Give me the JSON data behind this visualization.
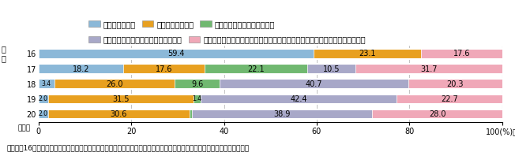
{
  "years": [
    "16",
    "17",
    "18",
    "19",
    "20"
  ],
  "segments_per_row": [
    [
      {
        "value": 59.4,
        "color": "#8BB8D8"
      },
      {
        "value": 23.1,
        "color": "#E8A020"
      },
      {
        "value": 17.6,
        "color": "#F0A8B8"
      }
    ],
    [
      {
        "value": 18.2,
        "color": "#8BB8D8"
      },
      {
        "value": 17.6,
        "color": "#E8A020"
      },
      {
        "value": 22.1,
        "color": "#70B870"
      },
      {
        "value": 10.5,
        "color": "#A8A8C8"
      },
      {
        "value": 31.7,
        "color": "#F0A8B8"
      }
    ],
    [
      {
        "value": 3.4,
        "color": "#8BB8D8"
      },
      {
        "value": 26.0,
        "color": "#E8A020"
      },
      {
        "value": 9.6,
        "color": "#70B870"
      },
      {
        "value": 40.7,
        "color": "#A8A8C8"
      },
      {
        "value": 20.3,
        "color": "#F0A8B8"
      }
    ],
    [
      {
        "value": 2.0,
        "color": "#8BB8D8"
      },
      {
        "value": 31.5,
        "color": "#E8A020"
      },
      {
        "value": 1.4,
        "color": "#70B870"
      },
      {
        "value": 42.4,
        "color": "#A8A8C8"
      },
      {
        "value": 22.7,
        "color": "#F0A8B8"
      }
    ],
    [
      {
        "value": 2.0,
        "color": "#8BB8D8"
      },
      {
        "value": 30.6,
        "color": "#E8A020"
      },
      {
        "value": 0.5,
        "color": "#70B870"
      },
      {
        "value": 38.9,
        "color": "#A8A8C8"
      },
      {
        "value": 28.0,
        "color": "#F0A8B8"
      }
    ]
  ],
  "legend_row1": [
    {
      "label": "交通事故示談金",
      "color": "#8BB8D8"
    },
    {
      "label": "サラ金等借金返済",
      "color": "#E8A020"
    },
    {
      "label": "公共交通機関での痴漢示談金",
      "color": "#70B870"
    }
  ],
  "legend_row2": [
    {
      "label": "会社でのトラブル・横領等の補てん金",
      "color": "#A8A8C8"
    },
    {
      "label": "その他（妊娠中絶手術費用、刑事事件に係る示談金・弁護費用・保釈金　等）",
      "color": "#F0A8B8"
    }
  ],
  "note": "注：平成16年中の「その他」には、「会社でのトラブル・横領等の補てん金」及び「公共交通機関での痴漢示談金」を含む。",
  "heiseilabel": "平\n成",
  "nenlabel": "（年）",
  "background_color": "#ffffff",
  "bar_height": 0.65,
  "fontsize": 7.0,
  "legend_fontsize": 7.0,
  "note_fontsize": 6.5
}
